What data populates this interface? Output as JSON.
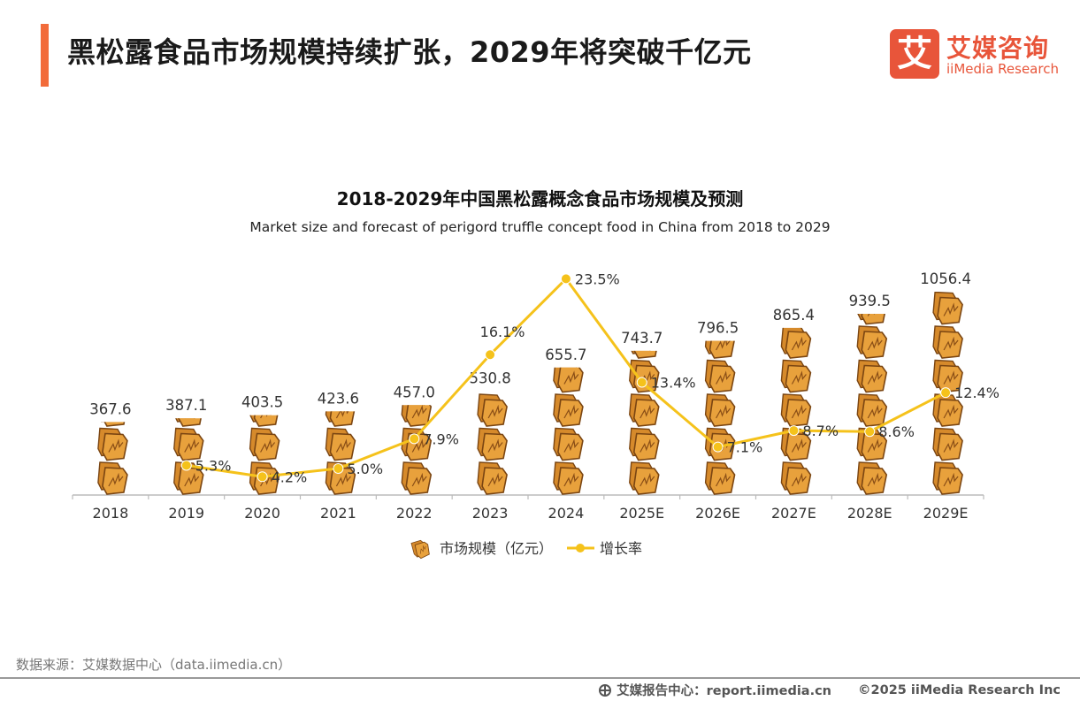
{
  "header": {
    "title": "黑松露食品市场规模持续扩张，2029年将突破千亿元",
    "logo_cn": "艾媒咨询",
    "logo_en": "iiMedia Research",
    "logo_mark": "艾"
  },
  "colors": {
    "accent": "#f26b3a",
    "line": "#f5c21b",
    "truffle": "#e8a13c",
    "truffle_dark": "#7a4512"
  },
  "chart_data": {
    "type": "bar",
    "title": "2018-2029年中国黑松露概念食品市场规模及预测",
    "subtitle": "Market size and forecast of perigord truffle concept food in China from 2018 to 2029",
    "categories": [
      "2018",
      "2019",
      "2020",
      "2021",
      "2022",
      "2023",
      "2024",
      "2025E",
      "2026E",
      "2027E",
      "2028E",
      "2029E"
    ],
    "series": [
      {
        "name": "市场规模（亿元）",
        "type": "pictograph-bar",
        "values": [
          367.6,
          387.1,
          403.5,
          423.6,
          457.0,
          530.8,
          655.7,
          743.7,
          796.5,
          865.4,
          939.5,
          1056.4
        ],
        "labels": [
          "367.6",
          "387.1",
          "403.5",
          "423.6",
          "457.0",
          "530.8",
          "655.7",
          "743.7",
          "796.5",
          "865.4",
          "939.5",
          "1056.4"
        ]
      },
      {
        "name": "增长率",
        "type": "line",
        "values": [
          null,
          5.3,
          4.2,
          5.0,
          7.9,
          16.1,
          23.5,
          13.4,
          7.1,
          8.7,
          8.6,
          12.4
        ],
        "labels": [
          "",
          "5.3%",
          "4.2%",
          "5.0%",
          "7.9%",
          "16.1%",
          "23.5%",
          "13.4%",
          "7.1%",
          "8.7%",
          "8.6%",
          "12.4%"
        ]
      }
    ],
    "ylim": [
      0,
      1080
    ],
    "y2lim": [
      0,
      30
    ],
    "legend": "bottom-center",
    "grid": false
  },
  "footer": {
    "source": "数据来源：艾媒数据中心（data.iimedia.cn）",
    "report": "艾媒报告中心：report.iimedia.cn",
    "copyright": "©2025  iiMedia Research  Inc"
  }
}
